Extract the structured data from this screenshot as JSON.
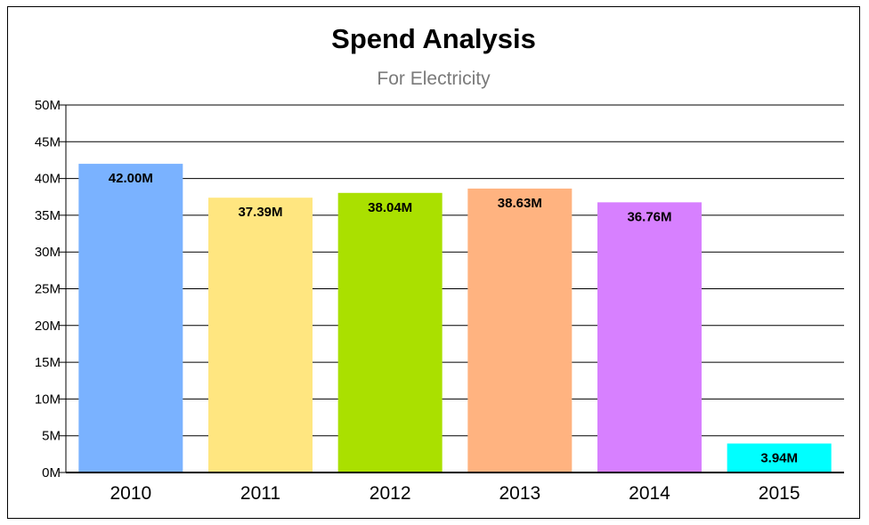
{
  "chart_data": {
    "type": "bar",
    "title": "Spend Analysis",
    "subtitle": "For Electricity",
    "categories": [
      "2010",
      "2011",
      "2012",
      "2013",
      "2014",
      "2015"
    ],
    "values": [
      42.0,
      37.39,
      38.04,
      38.63,
      36.76,
      3.94
    ],
    "value_labels": [
      "42.00M",
      "37.39M",
      "38.04M",
      "38.63M",
      "36.76M",
      "3.94M"
    ],
    "bar_colors": [
      "#7ab2ff",
      "#ffe680",
      "#aae000",
      "#ffb380",
      "#d780ff",
      "#00ffff"
    ],
    "y_ticks": [
      0,
      5,
      10,
      15,
      20,
      25,
      30,
      35,
      40,
      45,
      50
    ],
    "y_tick_labels": [
      "0M",
      "5M",
      "10M",
      "15M",
      "20M",
      "25M",
      "30M",
      "35M",
      "40M",
      "45M",
      "50M"
    ],
    "ylim": [
      0,
      50
    ],
    "xlabel": "",
    "ylabel": "",
    "grid": true,
    "legend": "none"
  }
}
